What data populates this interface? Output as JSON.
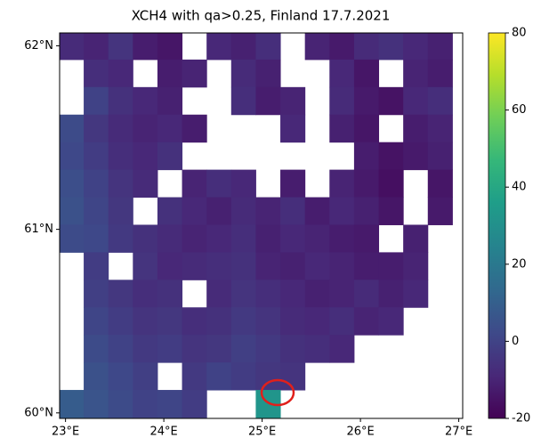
{
  "chart_data": {
    "type": "heatmap",
    "title": "XCH4 with qa>0.25, Finland 17.7.2021",
    "colormap": "viridis",
    "clim": [
      -20,
      80
    ],
    "cticks": [
      -20,
      0,
      20,
      40,
      60,
      80
    ],
    "xlim": [
      22.94,
      27.04
    ],
    "ylim": [
      59.97,
      62.07
    ],
    "xticks": [
      {
        "value": 23,
        "label": "23°E"
      },
      {
        "value": 24,
        "label": "24°E"
      },
      {
        "value": 25,
        "label": "25°E"
      },
      {
        "value": 26,
        "label": "26°E"
      },
      {
        "value": 27,
        "label": "27°E"
      }
    ],
    "yticks": [
      {
        "value": 60,
        "label": "60°N"
      },
      {
        "value": 61,
        "label": "61°N"
      },
      {
        "value": 62,
        "label": "62°N"
      }
    ],
    "x": [
      23.06,
      23.31,
      23.56,
      23.81,
      24.06,
      24.31,
      24.56,
      24.81,
      25.06,
      25.31,
      25.56,
      25.81,
      26.06,
      26.31,
      26.56,
      26.81
    ],
    "y": [
      62.0,
      61.85,
      61.7,
      61.55,
      61.4,
      61.25,
      61.1,
      60.95,
      60.8,
      60.65,
      60.5,
      60.35,
      60.2,
      60.05
    ],
    "values": [
      [
        -8,
        -10,
        -5,
        -12,
        -14,
        null,
        -9,
        -11,
        -7,
        null,
        -10,
        -13,
        -8,
        -6,
        -9,
        -11
      ],
      [
        null,
        -7,
        -9,
        null,
        -12,
        -10,
        null,
        -8,
        -11,
        null,
        null,
        -9,
        -14,
        null,
        -10,
        -12
      ],
      [
        null,
        0,
        -6,
        -9,
        -11,
        null,
        null,
        -7,
        -12,
        -10,
        null,
        -8,
        -13,
        -15,
        -9,
        -7
      ],
      [
        3,
        -4,
        -8,
        -10,
        -9,
        -12,
        null,
        null,
        null,
        -9,
        null,
        -11,
        -14,
        null,
        -12,
        -10
      ],
      [
        2,
        -2,
        -7,
        -9,
        -6,
        null,
        null,
        null,
        null,
        null,
        null,
        null,
        -12,
        -15,
        -13,
        -11
      ],
      [
        4,
        0,
        -5,
        -8,
        null,
        -10,
        -7,
        -9,
        null,
        -12,
        null,
        -10,
        -13,
        -16,
        null,
        -14
      ],
      [
        5,
        1,
        -4,
        null,
        -6,
        -9,
        -11,
        -8,
        -10,
        -7,
        -12,
        -9,
        -11,
        -14,
        null,
        -13
      ],
      [
        3,
        2,
        -3,
        -6,
        -8,
        -10,
        -9,
        -7,
        -11,
        -9,
        -10,
        -12,
        -13,
        null,
        -11,
        null
      ],
      [
        null,
        -2,
        null,
        -5,
        -9,
        -8,
        -7,
        -6,
        -10,
        -11,
        -9,
        -10,
        -12,
        -12,
        -10,
        null
      ],
      [
        null,
        -1,
        -4,
        -7,
        -6,
        null,
        -8,
        -5,
        -7,
        -9,
        -11,
        -10,
        -8,
        -11,
        -9,
        null
      ],
      [
        null,
        1,
        -2,
        -5,
        -4,
        -7,
        -6,
        -3,
        -5,
        -8,
        -9,
        -7,
        -10,
        -9,
        null,
        null
      ],
      [
        null,
        3,
        0,
        -3,
        -2,
        -5,
        -4,
        -1,
        -3,
        -6,
        -7,
        -9,
        null,
        null,
        null,
        null
      ],
      [
        null,
        5,
        2,
        -1,
        null,
        -3,
        0,
        -2,
        -4,
        -5,
        null,
        null,
        null,
        null,
        null,
        null
      ],
      [
        9,
        6,
        3,
        0,
        1,
        -2,
        null,
        null,
        32,
        null,
        null,
        null,
        null,
        null,
        null,
        null
      ]
    ]
  }
}
